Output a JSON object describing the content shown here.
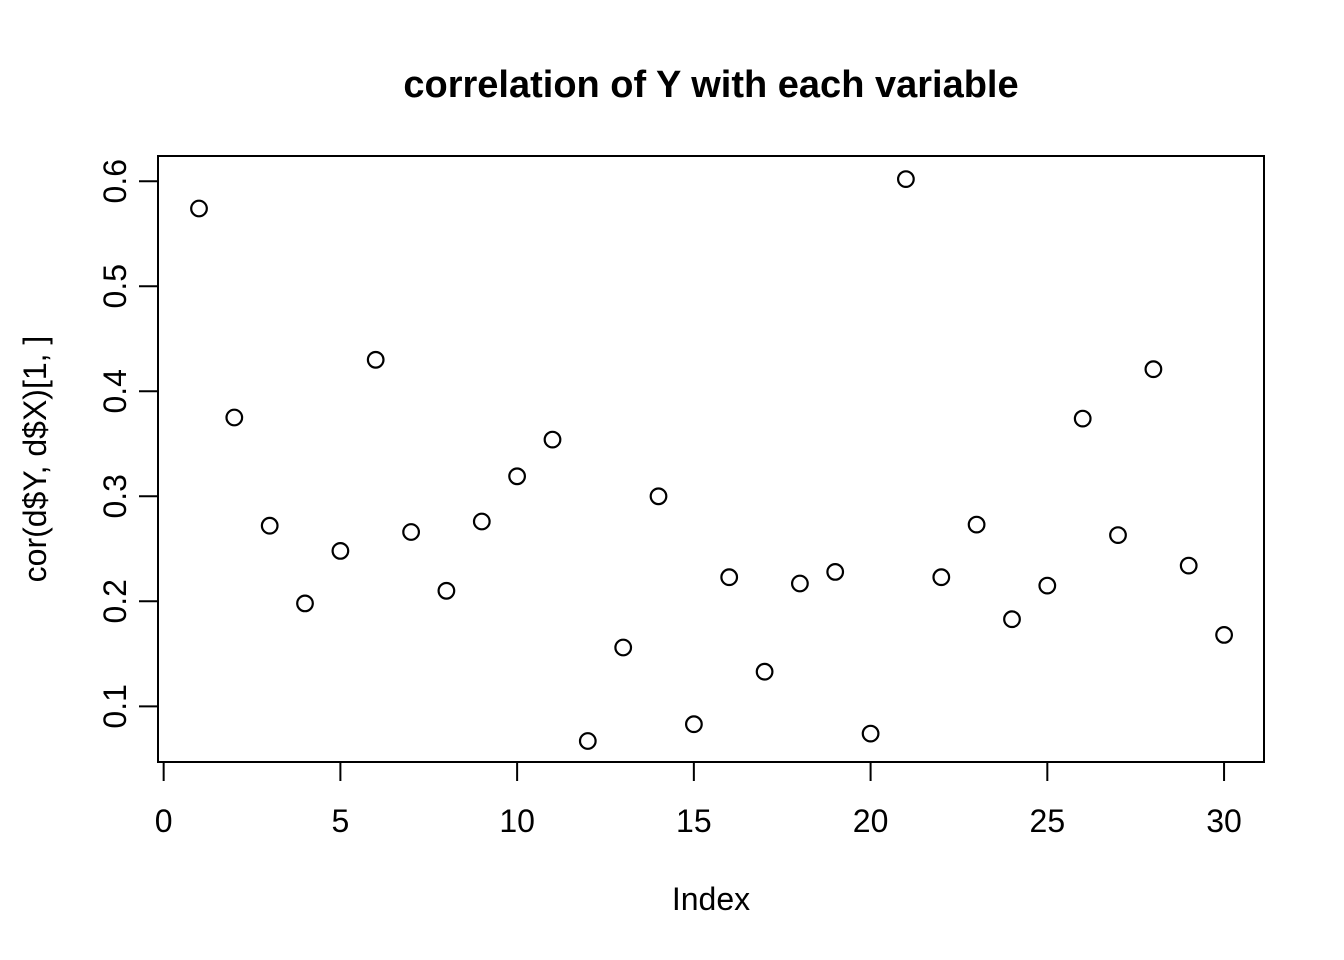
{
  "colors": {
    "background": "#ffffff",
    "foreground": "#000000"
  },
  "chart_data": {
    "type": "scatter",
    "title": "correlation of Y with each variable",
    "xlabel": "Index",
    "ylabel": "cor(d$Y, d$X)[1, ]",
    "marker": "open-circle",
    "grid": false,
    "legend": "none",
    "x": [
      1,
      2,
      3,
      4,
      5,
      6,
      7,
      8,
      9,
      10,
      11,
      12,
      13,
      14,
      15,
      16,
      17,
      18,
      19,
      20,
      21,
      22,
      23,
      24,
      25,
      26,
      27,
      28,
      29,
      30
    ],
    "y": [
      0.574,
      0.375,
      0.272,
      0.198,
      0.248,
      0.43,
      0.266,
      0.21,
      0.276,
      0.319,
      0.354,
      0.067,
      0.156,
      0.3,
      0.083,
      0.223,
      0.133,
      0.217,
      0.228,
      0.074,
      0.602,
      0.223,
      0.273,
      0.183,
      0.215,
      0.374,
      0.263,
      0.421,
      0.234,
      0.168
    ],
    "x_tick_values": [
      0,
      5,
      10,
      15,
      20,
      25,
      30
    ],
    "x_tick_labels": [
      "0",
      "5",
      "10",
      "15",
      "20",
      "25",
      "30"
    ],
    "y_tick_values": [
      0.1,
      0.2,
      0.3,
      0.4,
      0.5,
      0.6
    ],
    "y_tick_labels": [
      "0.1",
      "0.2",
      "0.3",
      "0.4",
      "0.5",
      "0.6"
    ],
    "xlim": [
      -0.16,
      31.13
    ],
    "ylim": [
      0.047,
      0.624
    ]
  }
}
